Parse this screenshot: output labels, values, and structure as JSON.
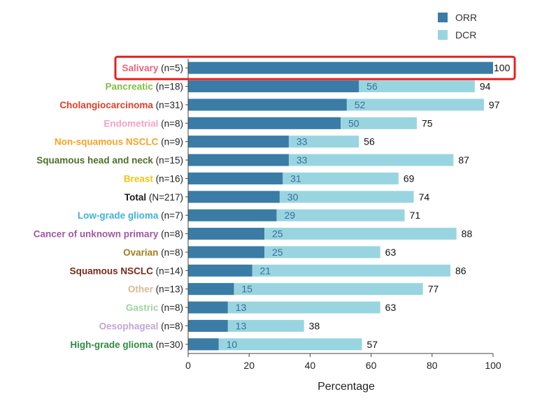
{
  "chart_data": {
    "type": "bar",
    "orientation": "horizontal",
    "stacking": "overlay",
    "xlabel": "Percentage",
    "xlim": [
      0,
      100
    ],
    "xticks": [
      0,
      20,
      40,
      60,
      80,
      100
    ],
    "legend": {
      "position": "top-right"
    },
    "series": [
      {
        "name": "ORR",
        "color": "#3a7ca5"
      },
      {
        "name": "DCR",
        "color": "#99d5e0"
      }
    ],
    "highlight": {
      "category_index": 0,
      "color": "#e8201f"
    },
    "categories": [
      {
        "name": "Salivary",
        "n": "(n=5)",
        "color": "#e9667a",
        "orr": 100,
        "dcr": 100,
        "orr_label": "",
        "dcr_label": "100"
      },
      {
        "name": "Pancreatic",
        "n": "(n=18)",
        "color": "#7fbf3f",
        "orr": 56,
        "dcr": 94,
        "orr_label": "56",
        "dcr_label": "94"
      },
      {
        "name": "Cholangiocarcinoma",
        "n": "(n=31)",
        "color": "#e33d26",
        "orr": 52,
        "dcr": 97,
        "orr_label": "52",
        "dcr_label": "97"
      },
      {
        "name": "Endometrial",
        "n": "(n=8)",
        "color": "#f4a2c6",
        "orr": 50,
        "dcr": 75,
        "orr_label": "50",
        "dcr_label": "75"
      },
      {
        "name": "Non-squamous NSCLC",
        "n": "(n=9)",
        "color": "#f7a326",
        "orr": 33,
        "dcr": 56,
        "orr_label": "33",
        "dcr_label": "56"
      },
      {
        "name": "Squamous head and neck",
        "n": "(n=15)",
        "color": "#4f6f2a",
        "orr": 33,
        "dcr": 87,
        "orr_label": "33",
        "dcr_label": "87"
      },
      {
        "name": "Breast",
        "n": "(n=16)",
        "color": "#f2c413",
        "orr": 31,
        "dcr": 69,
        "orr_label": "31",
        "dcr_label": "69"
      },
      {
        "name": "Total",
        "n": "(N=217)",
        "color": "#1a1a1a",
        "orr": 30,
        "dcr": 74,
        "orr_label": "30",
        "dcr_label": "74"
      },
      {
        "name": "Low-grade glioma",
        "n": "(n=7)",
        "color": "#3fb2d6",
        "orr": 29,
        "dcr": 71,
        "orr_label": "29",
        "dcr_label": "71"
      },
      {
        "name": "Cancer of unknown primary",
        "n": "(n=8)",
        "color": "#a356a8",
        "orr": 25,
        "dcr": 88,
        "orr_label": "25",
        "dcr_label": "88"
      },
      {
        "name": "Ovarian",
        "n": "(n=8)",
        "color": "#a07f1d",
        "orr": 25,
        "dcr": 63,
        "orr_label": "25",
        "dcr_label": "63"
      },
      {
        "name": "Squamous NSCLC",
        "n": "(n=14)",
        "color": "#7a2a1a",
        "orr": 21,
        "dcr": 86,
        "orr_label": "21",
        "dcr_label": "86"
      },
      {
        "name": "Other",
        "n": "(n=13)",
        "color": "#d8bc92",
        "orr": 15,
        "dcr": 77,
        "orr_label": "15",
        "dcr_label": "77"
      },
      {
        "name": "Gastric",
        "n": "(n=8)",
        "color": "#9fd3a0",
        "orr": 13,
        "dcr": 63,
        "orr_label": "13",
        "dcr_label": "63"
      },
      {
        "name": "Oesophageal",
        "n": "(n=8)",
        "color": "#c3a5d6",
        "orr": 13,
        "dcr": 38,
        "orr_label": "13",
        "dcr_label": "38"
      },
      {
        "name": "High-grade glioma",
        "n": "(n=30)",
        "color": "#2e8b43",
        "orr": 10,
        "dcr": 57,
        "orr_label": "10",
        "dcr_label": "57"
      }
    ]
  }
}
